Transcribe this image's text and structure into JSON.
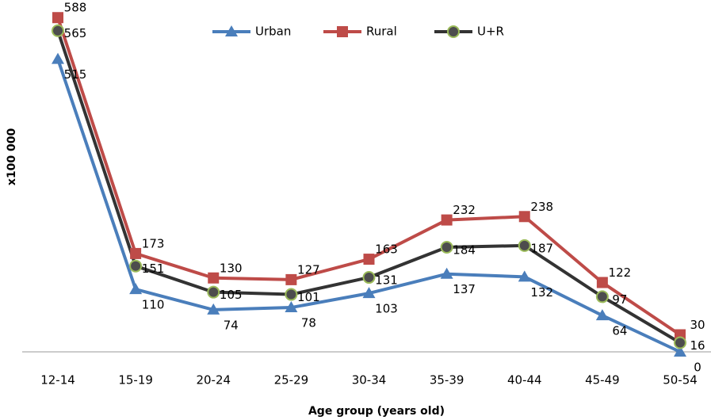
{
  "chart_data": {
    "type": "line",
    "x_label": "Age group (years old)",
    "y_label": "x100 000",
    "categories": [
      "12-14",
      "15-19",
      "20-24",
      "25-29",
      "30-34",
      "35-39",
      "40-44",
      "45-49",
      "50-54"
    ],
    "series": [
      {
        "name": "Urban",
        "color": "#4a7ebb",
        "marker": "triangle",
        "values": [
          515,
          110,
          74,
          78,
          103,
          137,
          132,
          64,
          0
        ]
      },
      {
        "name": "Rural",
        "color": "#be4b48",
        "marker": "square",
        "values": [
          588,
          173,
          130,
          127,
          163,
          232,
          238,
          122,
          30
        ]
      },
      {
        "name": "U+R",
        "color": "#333333",
        "marker": "circle",
        "values": [
          565,
          151,
          105,
          101,
          131,
          184,
          187,
          97,
          16
        ]
      }
    ],
    "ylim": [
      0,
      619
    ],
    "legend": "top"
  }
}
